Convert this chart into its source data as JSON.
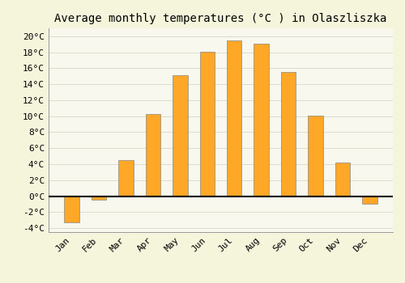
{
  "title": "Average monthly temperatures (°C ) in Olaszliszka",
  "months": [
    "Jan",
    "Feb",
    "Mar",
    "Apr",
    "May",
    "Jun",
    "Jul",
    "Aug",
    "Sep",
    "Oct",
    "Nov",
    "Dec"
  ],
  "values": [
    -3.3,
    -0.5,
    4.5,
    10.3,
    15.1,
    18.1,
    19.5,
    19.1,
    15.5,
    10.1,
    4.2,
    -1.0
  ],
  "bar_color": "#FFA726",
  "bar_edge_color": "#888888",
  "background_color": "#F5F5DC",
  "plot_bg_color": "#F8F8EE",
  "grid_color": "#DDDDCC",
  "ylim": [
    -4.5,
    21
  ],
  "yticks": [
    -4,
    -2,
    0,
    2,
    4,
    6,
    8,
    10,
    12,
    14,
    16,
    18,
    20
  ],
  "title_fontsize": 10,
  "tick_fontsize": 8,
  "zero_line_color": "#000000",
  "bar_width": 0.55
}
